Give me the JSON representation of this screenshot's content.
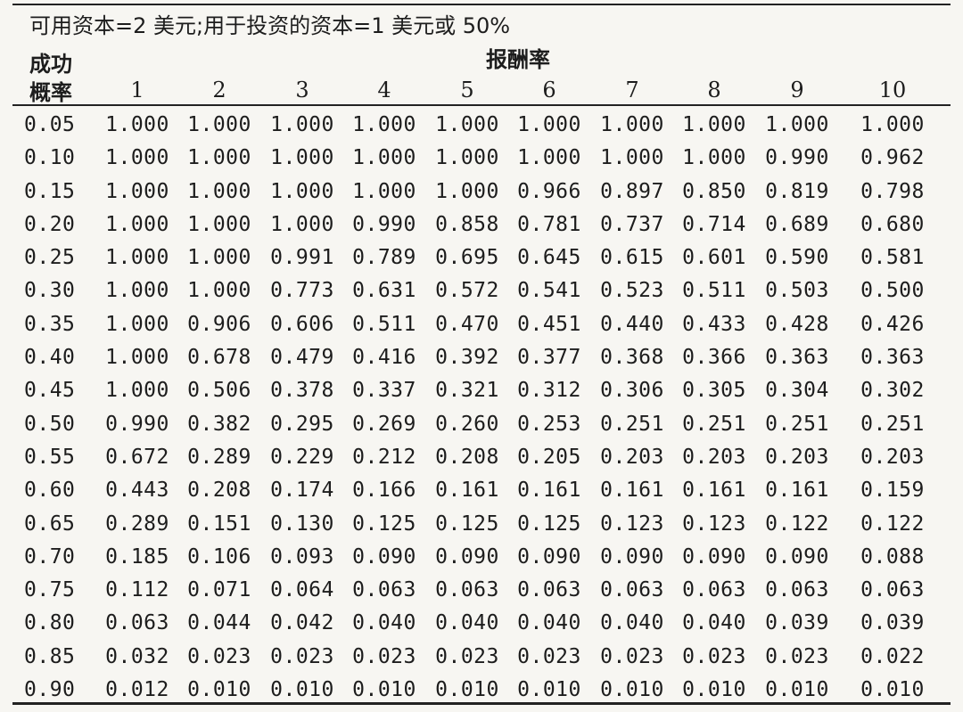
{
  "title": "可用资本=2 美元;用于投资的资本=1 美元或 50%",
  "row_header": [
    "成功",
    "概率"
  ],
  "column_group": "报酬率",
  "columns": [
    "1",
    "2",
    "3",
    "4",
    "5",
    "6",
    "7",
    "8",
    "9",
    "10"
  ],
  "rows": [
    {
      "p": "0.05",
      "v": [
        "1.000",
        "1.000",
        "1.000",
        "1.000",
        "1.000",
        "1.000",
        "1.000",
        "1.000",
        "1.000",
        "1.000"
      ]
    },
    {
      "p": "0.10",
      "v": [
        "1.000",
        "1.000",
        "1.000",
        "1.000",
        "1.000",
        "1.000",
        "1.000",
        "1.000",
        "0.990",
        "0.962"
      ]
    },
    {
      "p": "0.15",
      "v": [
        "1.000",
        "1.000",
        "1.000",
        "1.000",
        "1.000",
        "0.966",
        "0.897",
        "0.850",
        "0.819",
        "0.798"
      ]
    },
    {
      "p": "0.20",
      "v": [
        "1.000",
        "1.000",
        "1.000",
        "0.990",
        "0.858",
        "0.781",
        "0.737",
        "0.714",
        "0.689",
        "0.680"
      ]
    },
    {
      "p": "0.25",
      "v": [
        "1.000",
        "1.000",
        "0.991",
        "0.789",
        "0.695",
        "0.645",
        "0.615",
        "0.601",
        "0.590",
        "0.581"
      ]
    },
    {
      "p": "0.30",
      "v": [
        "1.000",
        "1.000",
        "0.773",
        "0.631",
        "0.572",
        "0.541",
        "0.523",
        "0.511",
        "0.503",
        "0.500"
      ]
    },
    {
      "p": "0.35",
      "v": [
        "1.000",
        "0.906",
        "0.606",
        "0.511",
        "0.470",
        "0.451",
        "0.440",
        "0.433",
        "0.428",
        "0.426"
      ]
    },
    {
      "p": "0.40",
      "v": [
        "1.000",
        "0.678",
        "0.479",
        "0.416",
        "0.392",
        "0.377",
        "0.368",
        "0.366",
        "0.363",
        "0.363"
      ]
    },
    {
      "p": "0.45",
      "v": [
        "1.000",
        "0.506",
        "0.378",
        "0.337",
        "0.321",
        "0.312",
        "0.306",
        "0.305",
        "0.304",
        "0.302"
      ]
    },
    {
      "p": "0.50",
      "v": [
        "0.990",
        "0.382",
        "0.295",
        "0.269",
        "0.260",
        "0.253",
        "0.251",
        "0.251",
        "0.251",
        "0.251"
      ]
    },
    {
      "p": "0.55",
      "v": [
        "0.672",
        "0.289",
        "0.229",
        "0.212",
        "0.208",
        "0.205",
        "0.203",
        "0.203",
        "0.203",
        "0.203"
      ]
    },
    {
      "p": "0.60",
      "v": [
        "0.443",
        "0.208",
        "0.174",
        "0.166",
        "0.161",
        "0.161",
        "0.161",
        "0.161",
        "0.161",
        "0.159"
      ]
    },
    {
      "p": "0.65",
      "v": [
        "0.289",
        "0.151",
        "0.130",
        "0.125",
        "0.125",
        "0.125",
        "0.123",
        "0.123",
        "0.122",
        "0.122"
      ]
    },
    {
      "p": "0.70",
      "v": [
        "0.185",
        "0.106",
        "0.093",
        "0.090",
        "0.090",
        "0.090",
        "0.090",
        "0.090",
        "0.090",
        "0.088"
      ]
    },
    {
      "p": "0.75",
      "v": [
        "0.112",
        "0.071",
        "0.064",
        "0.063",
        "0.063",
        "0.063",
        "0.063",
        "0.063",
        "0.063",
        "0.063"
      ]
    },
    {
      "p": "0.80",
      "v": [
        "0.063",
        "0.044",
        "0.042",
        "0.040",
        "0.040",
        "0.040",
        "0.040",
        "0.040",
        "0.039",
        "0.039"
      ]
    },
    {
      "p": "0.85",
      "v": [
        "0.032",
        "0.023",
        "0.023",
        "0.023",
        "0.023",
        "0.023",
        "0.023",
        "0.023",
        "0.023",
        "0.022"
      ]
    },
    {
      "p": "0.90",
      "v": [
        "0.012",
        "0.010",
        "0.010",
        "0.010",
        "0.010",
        "0.010",
        "0.010",
        "0.010",
        "0.010",
        "0.010"
      ]
    }
  ]
}
